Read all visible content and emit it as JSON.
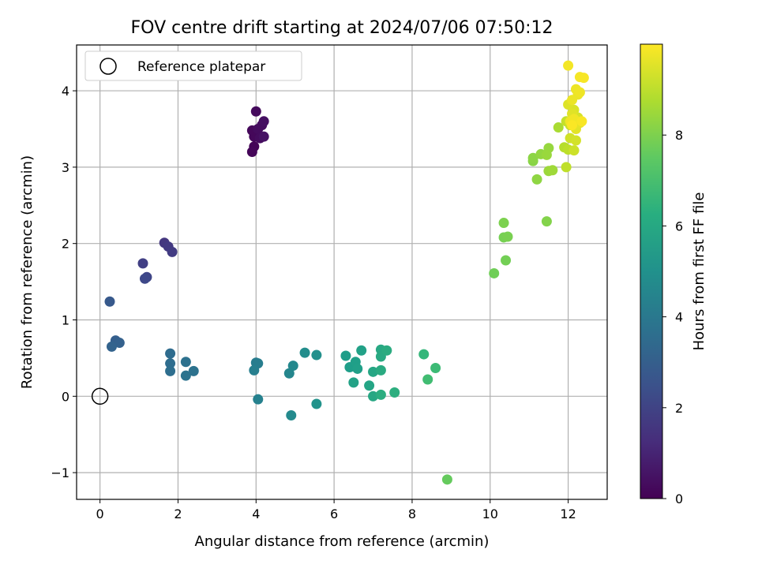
{
  "chart_data": {
    "type": "scatter",
    "title": "FOV centre drift starting at 2024/07/06 07:50:12",
    "xlabel": "Angular distance from reference (arcmin)",
    "ylabel": "Rotation from reference (arcmin)",
    "xlim": [
      -0.6,
      13.0
    ],
    "ylim": [
      -1.35,
      4.6
    ],
    "xticks": [
      0,
      2,
      4,
      6,
      8,
      10,
      12
    ],
    "yticks": [
      -1,
      0,
      1,
      2,
      3,
      4
    ],
    "xtick_labels": [
      "0",
      "2",
      "4",
      "6",
      "8",
      "10",
      "12"
    ],
    "ytick_labels": [
      "−1",
      "0",
      "1",
      "2",
      "3",
      "4"
    ],
    "grid": true,
    "legend": {
      "position": "top-left",
      "label": "Reference platepar"
    },
    "reference_point": {
      "x": 0,
      "y": 0
    },
    "colorbar": {
      "label": "Hours from first FF file",
      "range": [
        0,
        10
      ],
      "ticks": [
        0,
        2,
        4,
        6,
        8
      ],
      "tick_labels": [
        "0",
        "2",
        "4",
        "6",
        "8"
      ],
      "colormap": "viridis"
    },
    "points": [
      {
        "x": 3.95,
        "y": 3.27,
        "h": 0.1
      },
      {
        "x": 3.9,
        "y": 3.2,
        "h": 0.15
      },
      {
        "x": 3.95,
        "y": 3.4,
        "h": 0.2
      },
      {
        "x": 3.9,
        "y": 3.48,
        "h": 0.2
      },
      {
        "x": 4.0,
        "y": 3.73,
        "h": 0.25
      },
      {
        "x": 4.05,
        "y": 3.5,
        "h": 0.3
      },
      {
        "x": 4.1,
        "y": 3.38,
        "h": 0.3
      },
      {
        "x": 4.15,
        "y": 3.55,
        "h": 0.35
      },
      {
        "x": 4.2,
        "y": 3.6,
        "h": 0.4
      },
      {
        "x": 4.2,
        "y": 3.4,
        "h": 0.45
      },
      {
        "x": 1.65,
        "y": 2.01,
        "h": 1.6
      },
      {
        "x": 1.75,
        "y": 1.96,
        "h": 1.7
      },
      {
        "x": 1.85,
        "y": 1.89,
        "h": 1.75
      },
      {
        "x": 1.1,
        "y": 1.74,
        "h": 1.9
      },
      {
        "x": 1.2,
        "y": 1.56,
        "h": 2.1
      },
      {
        "x": 1.15,
        "y": 1.54,
        "h": 2.2
      },
      {
        "x": 0.25,
        "y": 1.24,
        "h": 2.8
      },
      {
        "x": 0.4,
        "y": 0.73,
        "h": 3.0
      },
      {
        "x": 0.5,
        "y": 0.7,
        "h": 3.1
      },
      {
        "x": 0.3,
        "y": 0.65,
        "h": 3.15
      },
      {
        "x": 1.8,
        "y": 0.56,
        "h": 3.5
      },
      {
        "x": 1.8,
        "y": 0.43,
        "h": 3.55
      },
      {
        "x": 1.8,
        "y": 0.33,
        "h": 3.6
      },
      {
        "x": 2.2,
        "y": 0.45,
        "h": 3.7
      },
      {
        "x": 2.4,
        "y": 0.33,
        "h": 3.75
      },
      {
        "x": 2.2,
        "y": 0.27,
        "h": 3.8
      },
      {
        "x": 4.0,
        "y": 0.44,
        "h": 4.2
      },
      {
        "x": 4.05,
        "y": 0.43,
        "h": 4.25
      },
      {
        "x": 3.95,
        "y": 0.34,
        "h": 4.3
      },
      {
        "x": 4.05,
        "y": -0.04,
        "h": 4.4
      },
      {
        "x": 4.85,
        "y": 0.3,
        "h": 4.6
      },
      {
        "x": 4.95,
        "y": 0.4,
        "h": 4.7
      },
      {
        "x": 4.9,
        "y": -0.25,
        "h": 4.75
      },
      {
        "x": 5.25,
        "y": 0.57,
        "h": 4.9
      },
      {
        "x": 5.55,
        "y": 0.54,
        "h": 5.0
      },
      {
        "x": 5.55,
        "y": -0.1,
        "h": 5.1
      },
      {
        "x": 6.3,
        "y": 0.53,
        "h": 5.5
      },
      {
        "x": 6.4,
        "y": 0.38,
        "h": 5.55
      },
      {
        "x": 6.55,
        "y": 0.45,
        "h": 5.6
      },
      {
        "x": 6.6,
        "y": 0.36,
        "h": 5.65
      },
      {
        "x": 6.7,
        "y": 0.6,
        "h": 5.7
      },
      {
        "x": 6.5,
        "y": 0.18,
        "h": 5.75
      },
      {
        "x": 6.9,
        "y": 0.14,
        "h": 5.85
      },
      {
        "x": 7.0,
        "y": 0.32,
        "h": 5.9
      },
      {
        "x": 7.0,
        "y": 0.0,
        "h": 5.95
      },
      {
        "x": 7.2,
        "y": 0.61,
        "h": 6.0
      },
      {
        "x": 7.2,
        "y": 0.52,
        "h": 6.05
      },
      {
        "x": 7.2,
        "y": 0.34,
        "h": 6.1
      },
      {
        "x": 7.35,
        "y": 0.6,
        "h": 6.15
      },
      {
        "x": 7.2,
        "y": 0.02,
        "h": 6.2
      },
      {
        "x": 7.55,
        "y": 0.05,
        "h": 6.25
      },
      {
        "x": 8.3,
        "y": 0.55,
        "h": 6.6
      },
      {
        "x": 8.6,
        "y": 0.37,
        "h": 6.8
      },
      {
        "x": 8.4,
        "y": 0.22,
        "h": 6.9
      },
      {
        "x": 8.9,
        "y": -1.09,
        "h": 7.6
      },
      {
        "x": 10.1,
        "y": 1.61,
        "h": 7.8
      },
      {
        "x": 10.4,
        "y": 1.78,
        "h": 7.85
      },
      {
        "x": 10.35,
        "y": 2.08,
        "h": 7.9
      },
      {
        "x": 10.45,
        "y": 2.09,
        "h": 7.95
      },
      {
        "x": 10.35,
        "y": 2.27,
        "h": 8.0
      },
      {
        "x": 11.45,
        "y": 2.29,
        "h": 8.1
      },
      {
        "x": 11.1,
        "y": 3.08,
        "h": 8.2
      },
      {
        "x": 11.1,
        "y": 3.12,
        "h": 8.25
      },
      {
        "x": 11.2,
        "y": 2.84,
        "h": 8.3
      },
      {
        "x": 11.3,
        "y": 3.17,
        "h": 8.35
      },
      {
        "x": 11.5,
        "y": 3.25,
        "h": 8.4
      },
      {
        "x": 11.45,
        "y": 3.16,
        "h": 8.45
      },
      {
        "x": 11.5,
        "y": 2.95,
        "h": 8.5
      },
      {
        "x": 11.6,
        "y": 2.96,
        "h": 8.55
      },
      {
        "x": 11.75,
        "y": 3.52,
        "h": 8.7
      },
      {
        "x": 11.9,
        "y": 3.26,
        "h": 8.9
      },
      {
        "x": 12.0,
        "y": 3.23,
        "h": 9.0
      },
      {
        "x": 11.95,
        "y": 3.0,
        "h": 9.05
      },
      {
        "x": 11.95,
        "y": 3.6,
        "h": 9.1
      },
      {
        "x": 12.05,
        "y": 3.55,
        "h": 9.2
      },
      {
        "x": 12.15,
        "y": 3.22,
        "h": 9.25
      },
      {
        "x": 12.05,
        "y": 3.38,
        "h": 9.3
      },
      {
        "x": 12.2,
        "y": 3.35,
        "h": 9.35
      },
      {
        "x": 12.25,
        "y": 3.65,
        "h": 9.4
      },
      {
        "x": 12.15,
        "y": 3.75,
        "h": 9.45
      },
      {
        "x": 12.0,
        "y": 3.82,
        "h": 9.5
      },
      {
        "x": 12.1,
        "y": 3.7,
        "h": 9.55
      },
      {
        "x": 12.2,
        "y": 3.5,
        "h": 9.6
      },
      {
        "x": 12.3,
        "y": 3.58,
        "h": 9.65
      },
      {
        "x": 12.25,
        "y": 3.95,
        "h": 9.7
      },
      {
        "x": 12.1,
        "y": 3.88,
        "h": 9.72
      },
      {
        "x": 12.2,
        "y": 4.02,
        "h": 9.75
      },
      {
        "x": 12.3,
        "y": 3.98,
        "h": 9.78
      },
      {
        "x": 12.05,
        "y": 3.6,
        "h": 9.8
      },
      {
        "x": 12.15,
        "y": 3.63,
        "h": 9.82
      },
      {
        "x": 12.0,
        "y": 4.33,
        "h": 9.85
      },
      {
        "x": 12.3,
        "y": 4.18,
        "h": 9.88
      },
      {
        "x": 12.4,
        "y": 4.17,
        "h": 9.9
      },
      {
        "x": 12.35,
        "y": 3.6,
        "h": 9.92
      },
      {
        "x": 12.1,
        "y": 3.55,
        "h": 9.95
      }
    ]
  }
}
